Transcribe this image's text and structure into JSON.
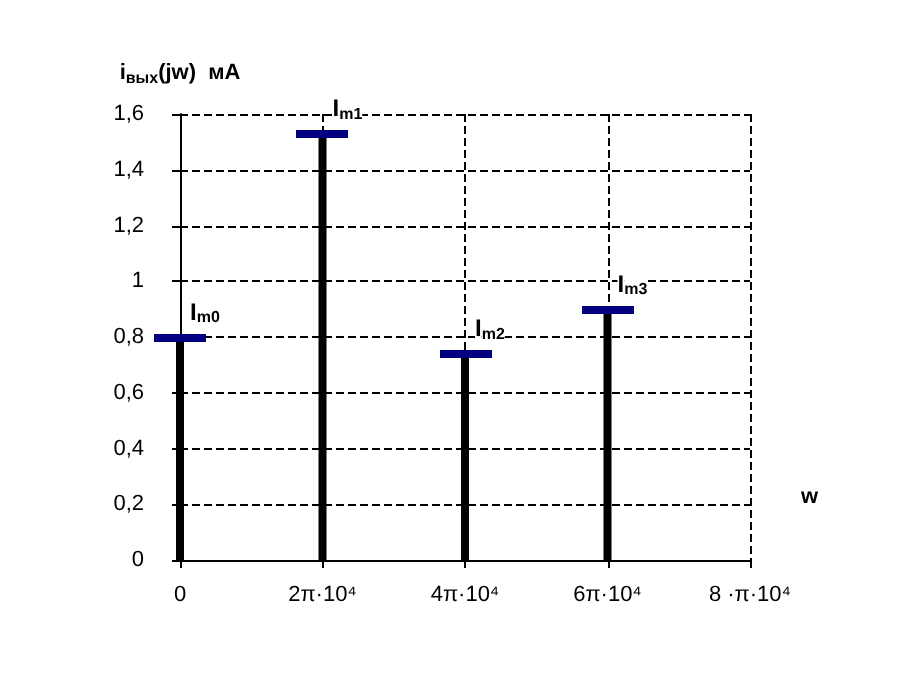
{
  "chart_data": {
    "type": "bar",
    "categories": [
      "0",
      "2π·10⁴",
      "4π·10⁴",
      "6π·10⁴",
      "8 ·π·10⁴"
    ],
    "values": [
      0.8,
      1.53,
      0.74,
      0.9,
      null
    ],
    "color": "#000000",
    "ylim": [
      0,
      1.6
    ],
    "yticks": [
      0,
      {
        "value": 0.2,
        "label": "0,2"
      },
      {
        "value": 0.4,
        "label": "0,4"
      },
      {
        "value": 0.6,
        "label": "0,6"
      },
      {
        "value": 0.8,
        "label": "0,8"
      },
      1,
      {
        "value": 1.2,
        "label": "1,2"
      },
      {
        "value": 1.4,
        "label": "1,4"
      },
      {
        "value": 1.6,
        "label": "1,6"
      }
    ],
    "xlabel": "w",
    "ylabel": "i$_{вых}$(jw)  мА",
    "grid": true,
    "annotations": [
      {
        "text": "I$_{m0}$",
        "x": "0",
        "y": 0.8
      },
      {
        "text": "I$_{m1}$",
        "x": "2π·10⁴",
        "y": 1.53
      },
      {
        "text": "I$_{m2}$",
        "x": "4π·10⁴",
        "y": 0.74
      },
      {
        "text": "I$_{m3}$",
        "x": "6π·10⁴",
        "y": 0.9
      }
    ]
  }
}
